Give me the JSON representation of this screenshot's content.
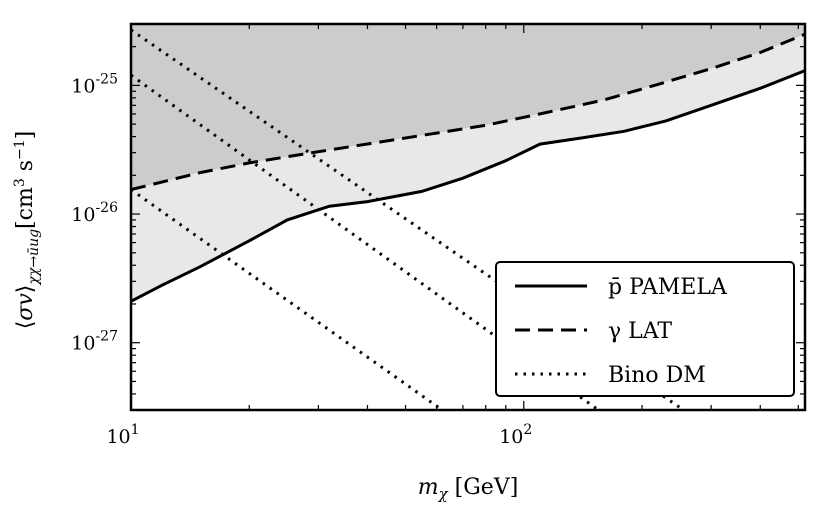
{
  "chart_data": {
    "type": "line",
    "xscale": "log",
    "yscale": "log",
    "xlim": [
      10,
      520
    ],
    "ylim": [
      3e-28,
      3e-25
    ],
    "xlabel": "m_χ [GeV]",
    "ylabel": "⟨σv⟩_{χχ→ūug} [cm³ s⁻¹]",
    "x_ticks": [
      {
        "value": 10,
        "base": "10",
        "exp": "1"
      },
      {
        "value": 100,
        "base": "10",
        "exp": "2"
      }
    ],
    "y_ticks": [
      {
        "value": 1e-27,
        "base": "10",
        "exp": "-27"
      },
      {
        "value": 1e-26,
        "base": "10",
        "exp": "-26"
      },
      {
        "value": 1e-25,
        "base": "10",
        "exp": "-25"
      }
    ],
    "grid": false,
    "legend": "bottom-right",
    "colors": {
      "lat_excluded_fill": "#cccccc",
      "pamela_excluded_fill": "#e8e8e8",
      "lines": "#000000"
    },
    "series": [
      {
        "name": "p̄ PAMELA",
        "style": "solid",
        "x": [
          10,
          12,
          15,
          20,
          25,
          32,
          40,
          55,
          70,
          90,
          110,
          140,
          180,
          230,
          300,
          400,
          520
        ],
        "y": [
          2.1e-27,
          2.8e-27,
          3.9e-27,
          6.2e-27,
          9e-27,
          1.15e-26,
          1.25e-26,
          1.5e-26,
          1.9e-26,
          2.6e-26,
          3.5e-26,
          3.9e-26,
          4.4e-26,
          5.3e-26,
          7e-26,
          9.5e-26,
          1.3e-25
        ]
      },
      {
        "name": "γ LAT",
        "style": "dashed",
        "x": [
          10,
          15,
          20,
          30,
          50,
          80,
          110,
          160,
          220,
          300,
          400,
          520
        ],
        "y": [
          1.55e-26,
          2.1e-26,
          2.5e-26,
          3.05e-26,
          3.9e-26,
          4.9e-26,
          6e-26,
          7.7e-26,
          1.02e-25,
          1.35e-25,
          1.8e-25,
          2.5e-25
        ]
      },
      {
        "name": "Bino DM",
        "style": "dotted",
        "lines": [
          {
            "x": [
              10,
              255
            ],
            "y": [
              2.7e-25,
              3e-28
            ]
          },
          {
            "x": [
              10,
              155
            ],
            "y": [
              1.2e-25,
              3e-28
            ]
          },
          {
            "x": [
              10,
              62
            ],
            "y": [
              1.55e-26,
              3e-28
            ]
          }
        ]
      }
    ]
  }
}
